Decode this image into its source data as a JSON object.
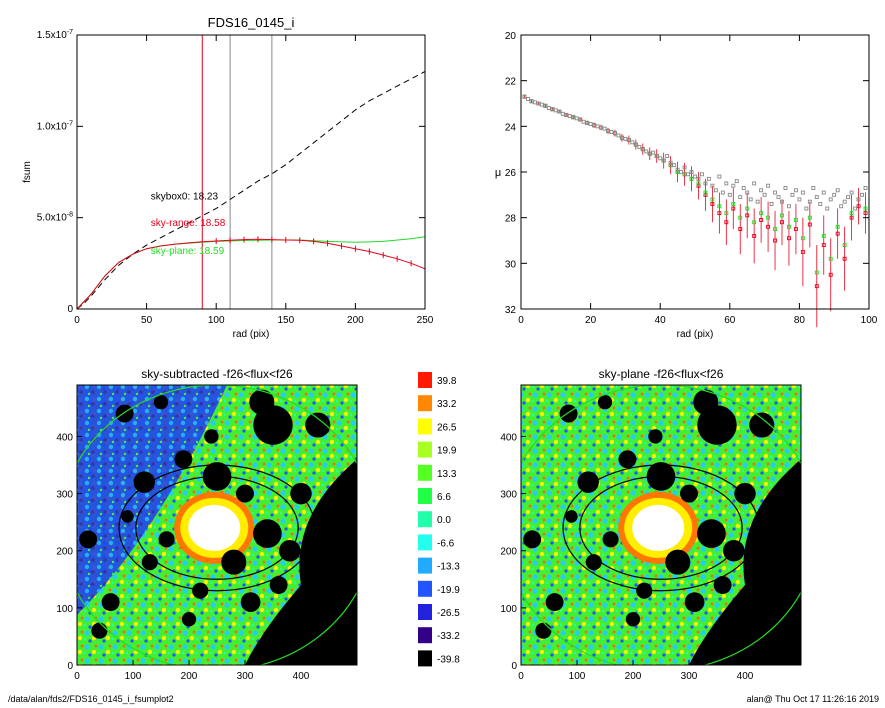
{
  "footer": {
    "path": "/data/alan/fds2/FDS16_0145_i_fsumplot2",
    "user_stamp": "alan@  Thu Oct 17 11:26:16 2019"
  },
  "colors": {
    "dashed": "#000000",
    "sky_range": "#e8001c",
    "sky_plane": "#22dd22",
    "grey_points": "#888888",
    "orange_points": "#e87800"
  },
  "chart_data": [
    {
      "type": "line",
      "title": "FDS16_0145_i",
      "xlabel": "rad (pix)",
      "ylabel": "fsum",
      "xlim": [
        0,
        250
      ],
      "ylim": [
        0,
        1.5e-07
      ],
      "xticks": [
        "0",
        "50",
        "100",
        "150",
        "200",
        "250"
      ],
      "yticks": [
        {
          "value": 0,
          "base": "0",
          "exp": ""
        },
        {
          "value": 5e-08,
          "base": "5.0x10",
          "exp": "-8"
        },
        {
          "value": 1e-07,
          "base": "1.0x10",
          "exp": "-7"
        },
        {
          "value": 1.5e-07,
          "base": "1.5x10",
          "exp": "-7"
        }
      ],
      "vlines": [
        {
          "x": 90,
          "color": "#e8001c"
        },
        {
          "x": 110,
          "color": "#888888"
        },
        {
          "x": 140,
          "color": "#888888"
        }
      ],
      "annotations": [
        {
          "text": "skybox0: 18.23",
          "color": "#000000",
          "x": 53,
          "y": 6e-08
        },
        {
          "text": "sky-range: 18.58",
          "color": "#e8001c",
          "x": 53,
          "y": 4.55e-08
        },
        {
          "text": "sky-plane: 18.59",
          "color": "#22dd22",
          "x": 53,
          "y": 3e-08
        }
      ],
      "series": [
        {
          "style": "dashed",
          "color": "#000000",
          "x": [
            0,
            5,
            10,
            20,
            30,
            40,
            50,
            60,
            70,
            80,
            90,
            100,
            110,
            120,
            130,
            140,
            150,
            160,
            170,
            180,
            190,
            200,
            210,
            220,
            230,
            240,
            250
          ],
          "y": [
            0,
            3e-09,
            7e-09,
            1.6e-08,
            2.4e-08,
            3e-08,
            3.5e-08,
            3.9e-08,
            4.3e-08,
            4.7e-08,
            5.1e-08,
            5.5e-08,
            6e-08,
            6.5e-08,
            7e-08,
            7.4e-08,
            7.9e-08,
            8.5e-08,
            9.1e-08,
            9.7e-08,
            1.03e-07,
            1.09e-07,
            1.14e-07,
            1.18e-07,
            1.22e-07,
            1.26e-07,
            1.3e-07
          ]
        },
        {
          "style": "solid",
          "color": "#22dd22",
          "x": [
            0,
            10,
            20,
            30,
            40,
            50,
            60,
            70,
            80,
            90,
            100,
            120,
            140,
            160,
            180,
            200,
            220,
            240,
            250
          ],
          "y": [
            0,
            8e-09,
            1.8e-08,
            2.55e-08,
            3e-08,
            3.3e-08,
            3.45e-08,
            3.55e-08,
            3.6e-08,
            3.65e-08,
            3.7e-08,
            3.75e-08,
            3.78e-08,
            3.78e-08,
            3.7e-08,
            3.65e-08,
            3.7e-08,
            3.85e-08,
            3.95e-08
          ]
        },
        {
          "style": "errbar",
          "color": "#e8001c",
          "x": [
            0,
            10,
            20,
            30,
            40,
            50,
            60,
            70,
            80,
            90,
            100,
            110,
            120,
            130,
            140,
            150,
            160,
            170,
            180,
            190,
            200,
            210,
            220,
            230,
            240,
            250
          ],
          "y": [
            0,
            8e-09,
            1.8e-08,
            2.55e-08,
            3e-08,
            3.3e-08,
            3.45e-08,
            3.55e-08,
            3.62e-08,
            3.68e-08,
            3.72e-08,
            3.76e-08,
            3.8e-08,
            3.82e-08,
            3.8e-08,
            3.78e-08,
            3.76e-08,
            3.7e-08,
            3.6e-08,
            3.45e-08,
            3.3e-08,
            3.15e-08,
            2.95e-08,
            2.75e-08,
            2.5e-08,
            2.2e-08
          ]
        }
      ]
    },
    {
      "type": "scatter",
      "title": "",
      "xlabel": "rad (pix)",
      "ylabel": "μ",
      "xlim": [
        0,
        100
      ],
      "ylim": [
        32,
        20
      ],
      "xticks": [
        "0",
        "20",
        "40",
        "60",
        "80",
        "100"
      ],
      "yticks": [
        "20",
        "22",
        "24",
        "26",
        "28",
        "30",
        "32"
      ],
      "series": [
        {
          "marker": "square-open",
          "color": "#888888",
          "x": [
            1,
            2,
            3,
            4,
            5,
            6,
            7,
            8,
            9,
            10,
            11,
            12,
            13,
            14,
            15,
            16,
            17,
            18,
            19,
            20,
            21,
            22,
            23,
            24,
            25,
            26,
            27,
            28,
            29,
            30,
            31,
            32,
            33,
            34,
            35,
            36,
            37,
            38,
            39,
            40,
            41,
            42,
            43,
            44,
            45,
            46,
            47,
            48,
            49,
            50,
            51,
            52,
            53,
            54,
            55,
            56,
            57,
            58,
            59,
            60,
            61,
            62,
            63,
            64,
            65,
            66,
            67,
            68,
            69,
            70,
            71,
            72,
            73,
            74,
            75,
            76,
            77,
            78,
            79,
            80,
            81,
            82,
            83,
            84,
            85,
            86,
            87,
            88,
            89,
            90,
            91,
            92,
            93,
            94,
            95,
            96,
            97,
            98,
            99
          ],
          "y": [
            22.7,
            22.8,
            22.9,
            22.95,
            23.0,
            23.05,
            23.1,
            23.2,
            23.25,
            23.3,
            23.35,
            23.45,
            23.5,
            23.55,
            23.6,
            23.65,
            23.7,
            23.8,
            23.85,
            23.9,
            23.95,
            24.0,
            24.05,
            24.1,
            24.2,
            24.25,
            24.3,
            24.4,
            24.5,
            24.55,
            24.6,
            24.7,
            24.8,
            24.9,
            25.0,
            25.1,
            25.2,
            25.15,
            25.3,
            25.4,
            25.5,
            25.3,
            25.6,
            25.7,
            25.9,
            26.0,
            25.8,
            26.1,
            26.0,
            26.2,
            26.3,
            26.1,
            26.5,
            26.3,
            26.6,
            26.8,
            26.2,
            26.9,
            26.5,
            27.0,
            26.6,
            26.4,
            27.1,
            26.7,
            26.9,
            27.2,
            26.5,
            27.3,
            26.8,
            27.0,
            26.6,
            27.4,
            26.9,
            27.1,
            27.3,
            26.7,
            27.5,
            27.0,
            26.8,
            27.2,
            26.9,
            27.6,
            27.3,
            26.7,
            27.1,
            27.4,
            26.9,
            27.6,
            27.2,
            27.0,
            26.8,
            27.5,
            27.3,
            27.1,
            26.9,
            27.6,
            27.2,
            27.0,
            26.7
          ]
        },
        {
          "marker": "square-open",
          "color": "#e8001c",
          "errbars": true,
          "x": [
            1,
            3,
            5,
            7,
            9,
            11,
            13,
            15,
            17,
            19,
            21,
            23,
            25,
            27,
            29,
            31,
            33,
            35,
            37,
            39,
            41,
            43,
            45,
            47,
            49,
            51,
            53,
            55,
            57,
            59,
            61,
            63,
            65,
            67,
            69,
            71,
            73,
            75,
            77,
            79,
            81,
            83,
            85,
            87,
            89,
            91,
            93,
            95,
            97,
            99
          ],
          "y": [
            22.7,
            22.9,
            23.0,
            23.1,
            23.25,
            23.35,
            23.5,
            23.6,
            23.7,
            23.85,
            23.95,
            24.05,
            24.2,
            24.3,
            24.5,
            24.6,
            24.8,
            25.0,
            25.2,
            25.3,
            25.5,
            25.7,
            26.0,
            26.1,
            26.3,
            26.6,
            27.0,
            27.4,
            27.8,
            28.2,
            27.6,
            28.5,
            27.9,
            28.8,
            28.1,
            28.4,
            29.0,
            28.2,
            28.9,
            28.5,
            29.5,
            28.3,
            31.0,
            29.2,
            30.5,
            28.7,
            29.8,
            28.0,
            27.5,
            27.8
          ],
          "err": [
            0.05,
            0.05,
            0.06,
            0.06,
            0.07,
            0.08,
            0.08,
            0.09,
            0.1,
            0.1,
            0.12,
            0.12,
            0.14,
            0.15,
            0.17,
            0.2,
            0.22,
            0.25,
            0.28,
            0.3,
            0.35,
            0.4,
            0.45,
            0.5,
            0.55,
            0.6,
            0.7,
            0.8,
            0.9,
            1.0,
            0.9,
            1.1,
            1.0,
            1.2,
            1.0,
            1.1,
            1.3,
            1.0,
            1.2,
            1.1,
            1.5,
            1.0,
            1.8,
            1.3,
            1.6,
            1.1,
            1.4,
            1.0,
            0.8,
            0.9
          ]
        },
        {
          "marker": "square-open",
          "color": "#22dd22",
          "x": [
            1,
            3,
            5,
            7,
            9,
            11,
            13,
            15,
            17,
            19,
            21,
            23,
            25,
            27,
            29,
            31,
            33,
            35,
            37,
            39,
            41,
            43,
            45,
            47,
            49,
            51,
            53,
            55,
            57,
            59,
            61,
            63,
            65,
            67,
            69,
            71,
            73,
            75,
            77,
            79,
            81,
            83,
            85,
            87,
            89,
            91,
            93,
            95,
            97,
            99
          ],
          "y": [
            22.7,
            22.9,
            23.0,
            23.1,
            23.25,
            23.35,
            23.5,
            23.6,
            23.7,
            23.85,
            23.95,
            24.05,
            24.2,
            24.3,
            24.5,
            24.6,
            24.8,
            25.0,
            25.2,
            25.3,
            25.5,
            25.7,
            26.0,
            26.1,
            26.3,
            26.5,
            26.9,
            27.2,
            27.5,
            27.8,
            27.4,
            28.0,
            27.6,
            28.2,
            27.8,
            28.0,
            28.5,
            27.9,
            28.4,
            28.1,
            28.9,
            28.0,
            30.4,
            28.8,
            29.8,
            28.4,
            29.2,
            27.8,
            27.2,
            27.6
          ]
        }
      ]
    },
    {
      "type": "heatmap",
      "title": "sky-subtracted -f26<flux<f26",
      "xlim": [
        0,
        500
      ],
      "ylim": [
        0,
        490
      ],
      "xticks": [
        "0",
        "100",
        "200",
        "300",
        "400"
      ],
      "yticks": [
        "0",
        "100",
        "200",
        "300",
        "400"
      ],
      "ellipses": [
        {
          "cx": 250,
          "cy": 240,
          "rx": 175,
          "ry": 110,
          "color": "#000000"
        },
        {
          "cx": 250,
          "cy": 240,
          "rx": 145,
          "ry": 90,
          "color": "#000000"
        },
        {
          "cx": 250,
          "cy": 240,
          "rx": 280,
          "ry": 250,
          "color": "#22dd22"
        }
      ]
    },
    {
      "type": "heatmap",
      "title": "sky-plane -f26<flux<f26",
      "xlim": [
        0,
        500
      ],
      "ylim": [
        0,
        490
      ],
      "xticks": [
        "0",
        "100",
        "200",
        "300",
        "400"
      ],
      "yticks": [
        "0",
        "100",
        "200",
        "300",
        "400"
      ],
      "ellipses": [
        {
          "cx": 250,
          "cy": 240,
          "rx": 175,
          "ry": 110,
          "color": "#000000"
        },
        {
          "cx": 250,
          "cy": 240,
          "rx": 145,
          "ry": 90,
          "color": "#000000"
        },
        {
          "cx": 250,
          "cy": 240,
          "rx": 280,
          "ry": 250,
          "color": "#22dd22"
        }
      ]
    }
  ],
  "colorbar": {
    "labels": [
      "39.8",
      "33.2",
      "26.5",
      "19.9",
      "13.3",
      "6.6",
      "0.0",
      "-6.6",
      "-13.3",
      "-19.9",
      "-26.5",
      "-33.2",
      "-39.8"
    ],
    "colors": [
      "#ff1a00",
      "#ff8800",
      "#ffff00",
      "#aaff22",
      "#55ff22",
      "#22ff44",
      "#22ffaa",
      "#22ffee",
      "#22aaff",
      "#2255ff",
      "#2222dd",
      "#330088",
      "#000000"
    ]
  }
}
